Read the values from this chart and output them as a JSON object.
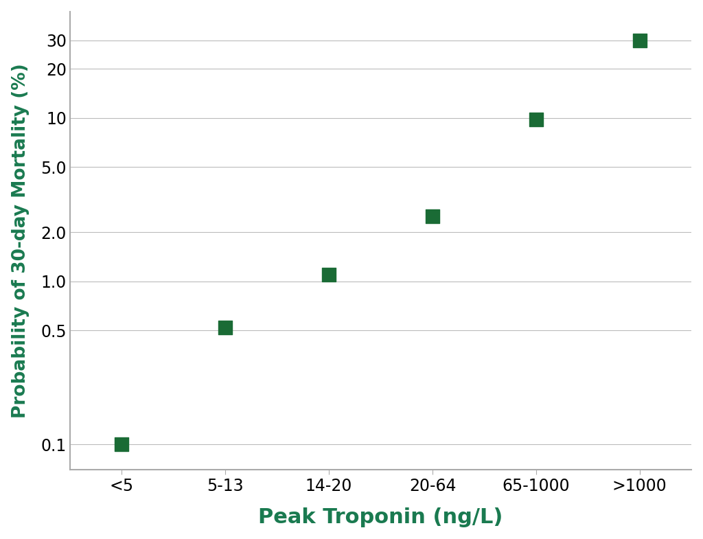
{
  "categories": [
    "<5",
    "5-13",
    "14-20",
    "20-64",
    "65-1000",
    ">1000"
  ],
  "values": [
    0.1,
    0.52,
    1.1,
    2.5,
    9.8,
    30.0
  ],
  "marker_color": "#1a6b35",
  "marker_size": 200,
  "marker_style": "s",
  "xlabel": "Peak Troponin (ng/L)",
  "ylabel": "Probability of 30-day Mortality (%)",
  "axis_label_color": "#1a7a50",
  "tick_label_color": "#000000",
  "background_color": "#ffffff",
  "plot_bg_color": "#ffffff",
  "grid_color": "#bbbbbb",
  "spine_color": "#aaaaaa",
  "yticks": [
    0.1,
    0.5,
    1.0,
    2.0,
    5.0,
    10,
    20,
    30
  ],
  "ytick_labels": [
    "0.1",
    "0.5",
    "1.0",
    "2.0",
    "5.0",
    "10",
    "20",
    "30"
  ],
  "ymin": 0.07,
  "ymax": 45,
  "xlabel_fontsize": 22,
  "ylabel_fontsize": 19,
  "tick_fontsize": 17,
  "xlabel_fontweight": "bold",
  "ylabel_fontweight": "bold"
}
